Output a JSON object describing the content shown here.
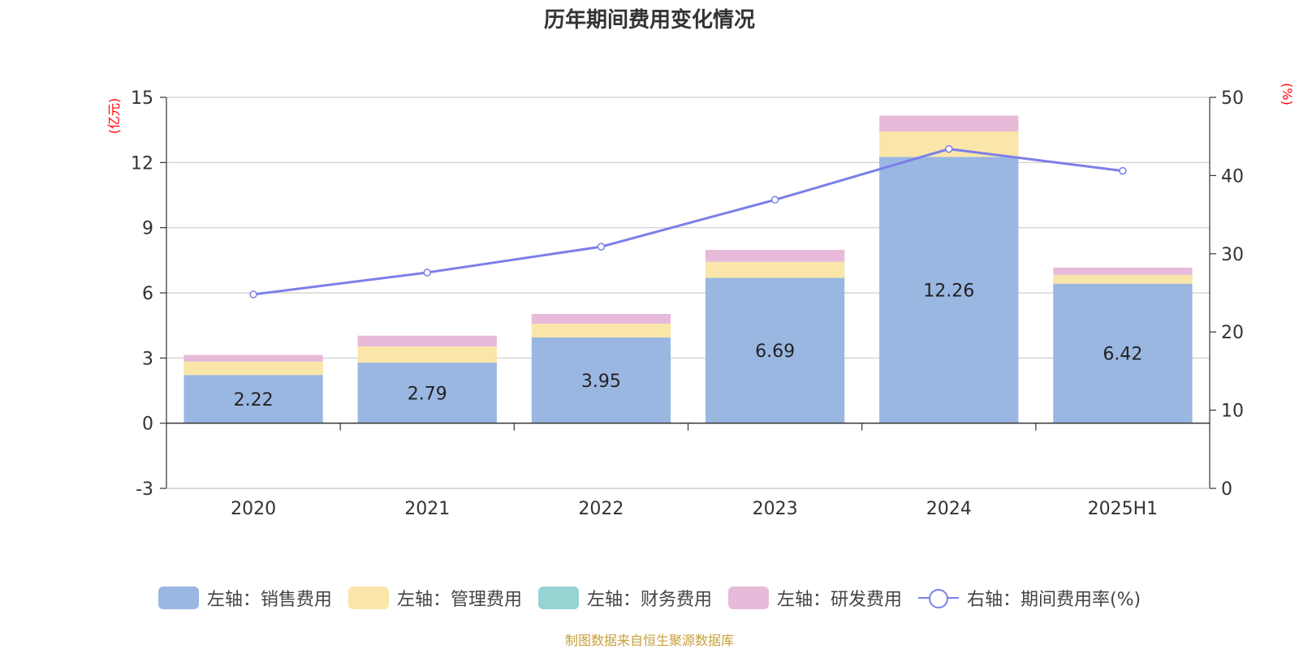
{
  "title": "历年期间费用变化情况",
  "source": "制图数据来自恒生聚源数据库",
  "y_left_unit": "(亿元)",
  "y_right_unit": "(%)",
  "chart_data": {
    "type": "bar",
    "stacked": true,
    "categories": [
      "2020",
      "2021",
      "2022",
      "2023",
      "2024",
      "2025H1"
    ],
    "y_left": {
      "min": -3,
      "max": 15,
      "ticks": [
        -3,
        0,
        3,
        6,
        9,
        12,
        15
      ]
    },
    "y_right": {
      "min": 0,
      "max": 50,
      "ticks": [
        0,
        10,
        20,
        30,
        40,
        50
      ]
    },
    "series": [
      {
        "name": "左轴：销售费用",
        "axis": "left",
        "color": "#9ab7e2",
        "values": [
          2.22,
          2.79,
          3.95,
          6.69,
          12.26,
          6.42
        ],
        "show_labels": true,
        "labels": [
          "2.22",
          "2.79",
          "3.95",
          "6.69",
          "12.26",
          "6.42"
        ]
      },
      {
        "name": "左轴：管理费用",
        "axis": "left",
        "color": "#f9e6a8",
        "values": [
          0.62,
          0.74,
          0.63,
          0.74,
          1.17,
          0.41
        ]
      },
      {
        "name": "左轴：财务费用",
        "axis": "left",
        "color": "#96d3d3",
        "values": [
          0,
          0,
          0,
          0,
          0,
          0
        ]
      },
      {
        "name": "左轴：研发费用",
        "axis": "left",
        "color": "#e8bad9",
        "values": [
          0.3,
          0.5,
          0.45,
          0.55,
          0.73,
          0.33
        ]
      },
      {
        "name": "右轴：期间费用率(%)",
        "axis": "right",
        "type": "line",
        "color": "#7b7fe8",
        "values": [
          24.8,
          27.6,
          30.9,
          36.9,
          43.4,
          40.6
        ]
      }
    ],
    "legend_position": "bottom",
    "grid": true
  }
}
